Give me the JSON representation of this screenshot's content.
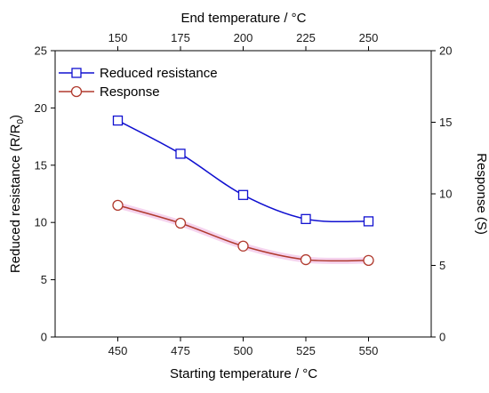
{
  "chart_data": {
    "type": "line",
    "title": "",
    "xlabel": "Starting temperature / °C",
    "xlabel_top": "End temperature / °C",
    "ylabel": "Reduced resistance (R/R",
    "ylabel_sub": "0",
    "ylabel_suffix": ")",
    "ylabel_right": "Response (S)",
    "x": [
      450,
      475,
      500,
      525,
      550
    ],
    "x_top": [
      150,
      175,
      200,
      225,
      250
    ],
    "xlim": [
      425,
      575
    ],
    "ylim": [
      0,
      25
    ],
    "ylim_right": [
      0,
      20
    ],
    "yticks": [
      0,
      5,
      10,
      15,
      20,
      25
    ],
    "yticks_right": [
      0,
      5,
      10,
      15,
      20
    ],
    "grid": false,
    "legend_position": "top-left",
    "series": [
      {
        "name": "Reduced resistance",
        "axis": "left",
        "marker": "square",
        "color": "#1010d0",
        "values": [
          18.9,
          16.0,
          12.4,
          10.3,
          10.1
        ]
      },
      {
        "name": "Response",
        "axis": "right",
        "marker": "circle",
        "color": "#b03a2e",
        "values": [
          9.2,
          7.95,
          6.35,
          5.4,
          5.35
        ]
      }
    ]
  }
}
